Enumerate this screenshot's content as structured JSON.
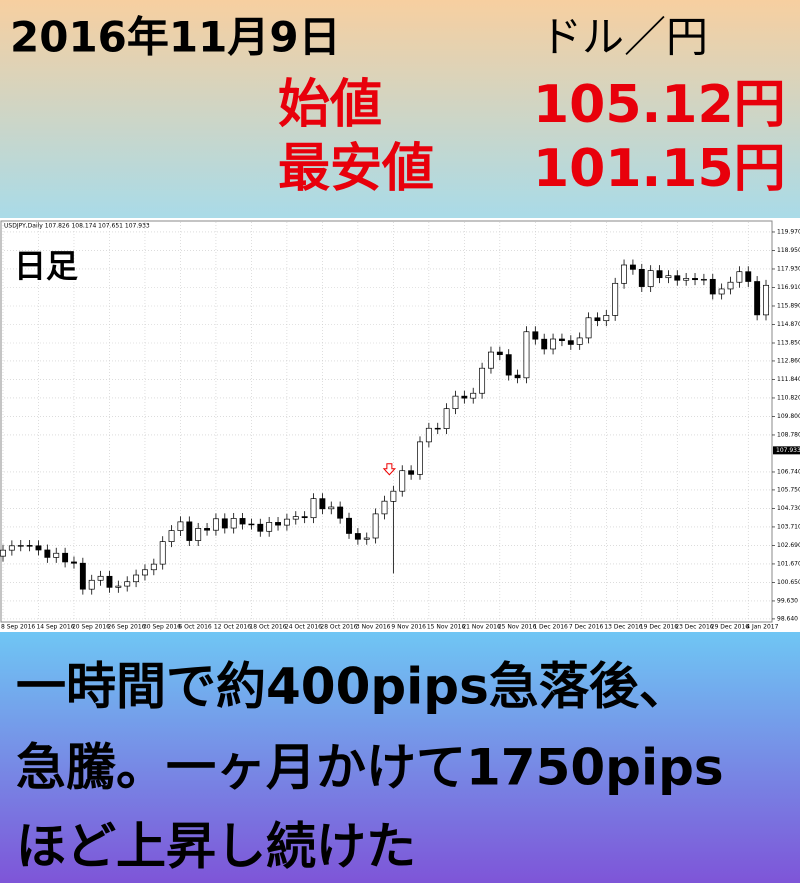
{
  "header": {
    "date": "2016年11月9日",
    "pair": "ドル／円",
    "open_label": "始値",
    "open_value": "105.12円",
    "low_label": "最安値",
    "low_value": "101.15円"
  },
  "chart_data": {
    "type": "candlestick",
    "symbol_info": "USDJPY,Daily  107.826 108.174 107.651 107.933",
    "timeframe_label": "日足",
    "categories": [
      "8 Sep 2016",
      null,
      null,
      null,
      "14 Sep 2016",
      null,
      null,
      null,
      "20 Sep 2016",
      null,
      null,
      null,
      "26 Sep 2016",
      null,
      null,
      null,
      "30 Sep 2016",
      null,
      null,
      null,
      "6 Oct 2016",
      null,
      null,
      null,
      "12 Oct 2016",
      null,
      null,
      null,
      "18 Oct 2016",
      null,
      null,
      null,
      "24 Oct 2016",
      null,
      null,
      null,
      "28 Oct 2016",
      null,
      null,
      null,
      "3 Nov 2016",
      null,
      null,
      null,
      "9 Nov 2016",
      null,
      null,
      null,
      "15 Nov 2016",
      null,
      null,
      null,
      "21 Nov 2016",
      null,
      null,
      null,
      "25 Nov 2016",
      null,
      null,
      null,
      "1 Dec 2016",
      null,
      null,
      null,
      "7 Dec 2016",
      null,
      null,
      null,
      "13 Dec 2016",
      null,
      null,
      null,
      "19 Dec 2016",
      null,
      null,
      null,
      "23 Dec 2016",
      null,
      null,
      null,
      "29 Dec 2016",
      null,
      null,
      null,
      "4 Jan 2017",
      null,
      null
    ],
    "open": [
      102.1,
      102.43,
      102.67,
      102.69,
      102.67,
      102.44,
      102.03,
      102.26,
      101.78,
      101.71,
      100.28,
      100.77,
      100.99,
      100.38,
      100.45,
      100.69,
      101.06,
      101.35,
      101.66,
      102.9,
      103.51,
      103.99,
      102.96,
      103.63,
      103.53,
      104.16,
      103.65,
      104.18,
      103.87,
      103.86,
      103.47,
      103.96,
      103.81,
      104.14,
      104.28,
      104.22,
      105.27,
      104.71,
      104.81,
      104.19,
      103.35,
      103.03,
      103.1,
      104.43,
      105.12,
      105.68,
      106.81,
      106.61,
      108.4,
      109.15,
      109.13,
      110.23,
      110.92,
      110.81,
      111.08,
      112.46,
      113.35,
      113.21,
      112.08,
      111.93,
      114.47,
      114.06,
      113.52,
      114.07,
      113.98,
      113.77,
      114.13,
      115.24,
      115.08,
      115.37,
      117.14,
      118.15,
      117.91,
      116.96,
      117.84,
      117.45,
      117.56,
      117.31,
      117.41,
      117.34,
      117.36,
      116.55,
      116.83,
      117.2,
      117.78,
      117.24,
      115.4
    ],
    "high": [
      102.73,
      102.97,
      102.99,
      102.99,
      102.97,
      102.74,
      102.56,
      102.56,
      102.08,
      102.01,
      101.07,
      101.29,
      101.29,
      100.75,
      100.99,
      101.36,
      101.65,
      101.96,
      103.2,
      103.81,
      104.29,
      104.29,
      103.93,
      103.93,
      104.46,
      104.46,
      104.48,
      104.48,
      104.17,
      104.16,
      104.26,
      104.26,
      104.44,
      104.58,
      104.58,
      105.57,
      105.57,
      105.11,
      105.11,
      104.49,
      103.65,
      103.4,
      104.73,
      105.43,
      105.98,
      107.11,
      107.11,
      108.7,
      109.45,
      109.45,
      110.53,
      111.22,
      111.22,
      111.38,
      112.76,
      113.65,
      113.65,
      113.51,
      112.38,
      114.77,
      114.77,
      114.36,
      114.37,
      114.37,
      114.28,
      114.43,
      115.54,
      115.54,
      115.67,
      117.44,
      118.45,
      118.45,
      118.21,
      118.14,
      118.14,
      117.86,
      117.86,
      117.71,
      117.71,
      117.66,
      117.66,
      117.13,
      117.5,
      118.08,
      118.08,
      117.54,
      117.33
    ],
    "low": [
      101.8,
      102.13,
      102.37,
      102.37,
      102.14,
      101.73,
      101.73,
      101.48,
      101.41,
      99.98,
      99.98,
      100.47,
      100.08,
      100.08,
      100.15,
      100.39,
      100.76,
      101.05,
      101.36,
      102.6,
      103.21,
      102.66,
      102.66,
      103.23,
      103.23,
      103.35,
      103.35,
      103.57,
      103.56,
      103.17,
      103.17,
      103.51,
      103.51,
      103.84,
      103.92,
      103.92,
      104.41,
      104.41,
      103.89,
      103.05,
      102.73,
      102.73,
      102.8,
      104.13,
      101.15,
      105.38,
      106.31,
      106.31,
      108.1,
      108.83,
      108.83,
      109.93,
      110.51,
      110.51,
      110.78,
      112.16,
      112.91,
      111.78,
      111.63,
      111.63,
      113.76,
      113.22,
      113.22,
      113.68,
      113.47,
      113.47,
      113.83,
      114.78,
      114.78,
      115.07,
      116.84,
      117.61,
      116.66,
      116.66,
      117.15,
      117.15,
      117.01,
      117.01,
      117.04,
      117.04,
      116.25,
      116.25,
      116.53,
      116.9,
      116.94,
      115.1,
      115.1
    ],
    "close": [
      102.43,
      102.67,
      102.69,
      102.67,
      102.44,
      102.03,
      102.26,
      101.78,
      101.71,
      100.28,
      100.77,
      100.99,
      100.38,
      100.45,
      100.69,
      101.06,
      101.35,
      101.66,
      102.9,
      103.51,
      103.99,
      102.96,
      103.63,
      103.53,
      104.16,
      103.65,
      104.18,
      103.87,
      103.86,
      103.47,
      103.96,
      103.81,
      104.14,
      104.28,
      104.22,
      105.27,
      104.71,
      104.81,
      104.19,
      103.35,
      103.03,
      103.1,
      104.43,
      105.13,
      105.68,
      106.81,
      106.61,
      108.4,
      109.15,
      109.13,
      110.23,
      110.92,
      110.81,
      111.08,
      112.46,
      113.35,
      113.21,
      112.08,
      111.93,
      114.47,
      114.06,
      113.52,
      114.07,
      113.98,
      113.77,
      114.13,
      115.24,
      115.08,
      115.37,
      117.14,
      118.15,
      117.91,
      116.96,
      117.84,
      117.45,
      117.56,
      117.31,
      117.41,
      117.34,
      117.36,
      116.55,
      116.83,
      117.2,
      117.78,
      117.24,
      115.4,
      117.03
    ],
    "ylim": [
      98.47,
      120.52
    ],
    "yticks": [
      {
        "value": 98.64,
        "label": "98.640"
      },
      {
        "value": 99.63,
        "label": "99.630"
      },
      {
        "value": 100.65,
        "label": "100.650"
      },
      {
        "value": 101.67,
        "label": "101.670"
      },
      {
        "value": 102.69,
        "label": "102.690"
      },
      {
        "value": 103.71,
        "label": "103.710"
      },
      {
        "value": 104.73,
        "label": "104.730"
      },
      {
        "value": 105.75,
        "label": "105.750"
      },
      {
        "value": 106.74,
        "label": "106.740"
      },
      {
        "value": 108.78,
        "label": "108.780"
      },
      {
        "value": 109.8,
        "label": "109.800"
      },
      {
        "value": 110.82,
        "label": "110.820"
      },
      {
        "value": 111.84,
        "label": "111.840"
      },
      {
        "value": 112.86,
        "label": "112.860"
      },
      {
        "value": 113.85,
        "label": "113.850"
      },
      {
        "value": 114.87,
        "label": "114.870"
      },
      {
        "value": 115.89,
        "label": "115.890"
      },
      {
        "value": 116.91,
        "label": "116.910"
      },
      {
        "value": 117.93,
        "label": "117.930"
      },
      {
        "value": 118.95,
        "label": "118.950"
      },
      {
        "value": 119.97,
        "label": "119.970"
      }
    ],
    "current_price": {
      "value": 107.933,
      "label": "107.933"
    },
    "grid": true,
    "up_color": "#ffffff",
    "down_color": "#000000"
  },
  "footer": {
    "lines": [
      "一時間で約400pips急落後、",
      "急騰。一ヶ月かけて1750pips",
      "ほど上昇し続けた"
    ]
  }
}
